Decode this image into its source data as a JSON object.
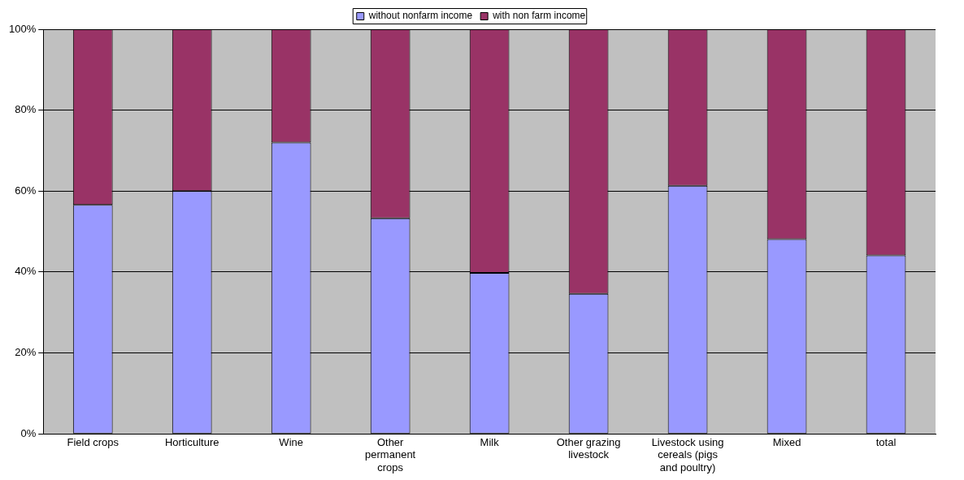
{
  "chart_data": {
    "type": "bar",
    "stacked": true,
    "categories": [
      "Field crops",
      "Horticulture",
      "Wine",
      "Other permanent crops",
      "Milk",
      "Other grazing livestock",
      "Livestock using cereals (pigs and poultry)",
      "Mixed",
      "total"
    ],
    "series": [
      {
        "name": "without nonfarm income",
        "color": "#9999ff",
        "values": [
          56.6,
          60,
          72,
          53.3,
          39.8,
          34.6,
          61.3,
          48.1,
          44.1
        ]
      },
      {
        "name": "with non farm income",
        "color": "#993366",
        "values": [
          43.4,
          40,
          28,
          46.7,
          60.2,
          65.4,
          38.7,
          51.9,
          55.9
        ]
      }
    ],
    "ylim": [
      0,
      100
    ],
    "yticks": [
      {
        "value": 0,
        "label": "0%"
      },
      {
        "value": 20,
        "label": "20%"
      },
      {
        "value": 40,
        "label": "40%"
      },
      {
        "value": 60,
        "label": "60%"
      },
      {
        "value": 80,
        "label": "80%"
      },
      {
        "value": 100,
        "label": "100%"
      }
    ],
    "grid": "y",
    "legend": "top"
  }
}
